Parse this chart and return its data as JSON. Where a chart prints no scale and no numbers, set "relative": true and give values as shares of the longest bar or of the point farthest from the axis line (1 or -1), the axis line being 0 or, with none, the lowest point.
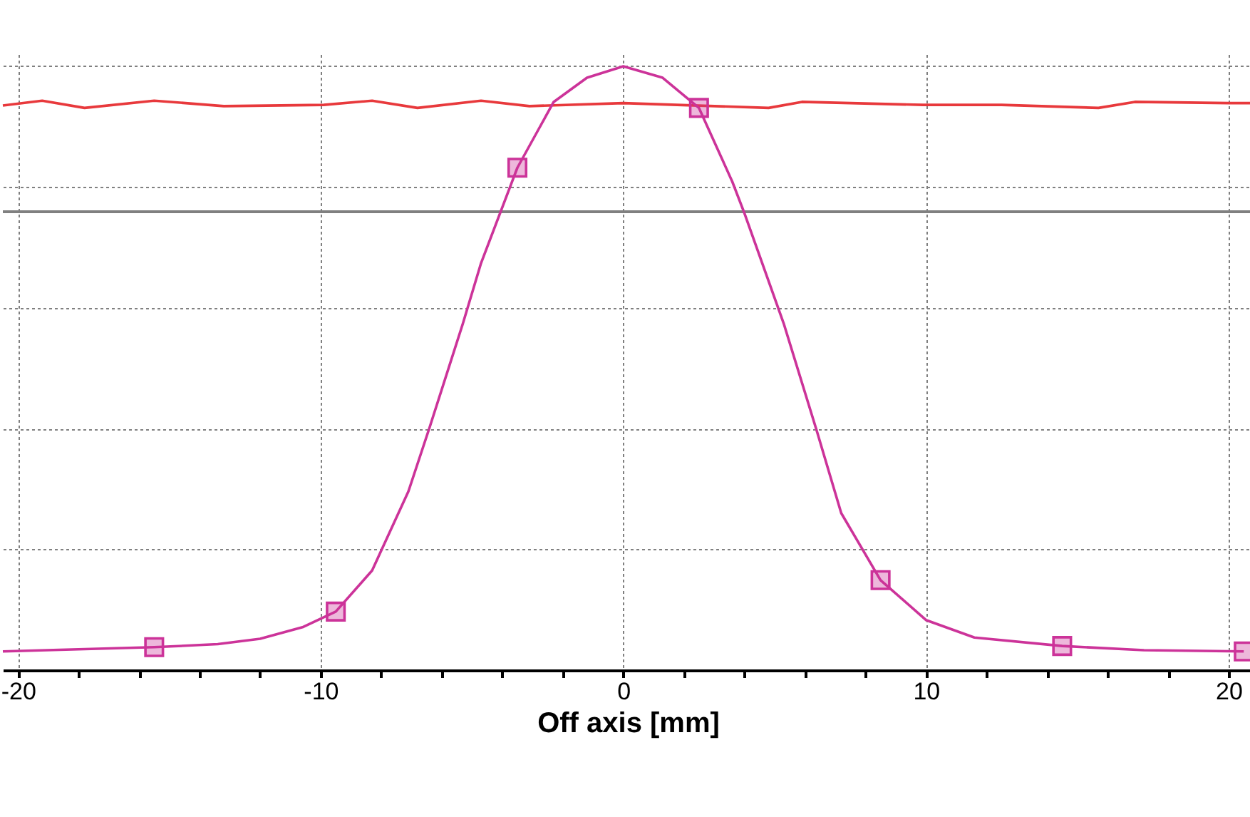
{
  "chart_data": {
    "type": "line",
    "xlabel": "Off axis [mm]",
    "relative": true,
    "grid": true,
    "xlim": [
      -20.5,
      20.8
    ],
    "xticks": [
      -20,
      {
        "value": -18,
        "label": null
      },
      {
        "value": -16,
        "label": null
      },
      {
        "value": -14,
        "label": null
      },
      {
        "value": -12,
        "label": null
      },
      -10,
      {
        "value": -8,
        "label": null
      },
      {
        "value": -6,
        "label": null
      },
      {
        "value": -4,
        "label": null
      },
      {
        "value": -2,
        "label": null
      },
      0,
      {
        "value": 2,
        "label": null
      },
      {
        "value": 4,
        "label": null
      },
      {
        "value": 6,
        "label": null
      },
      {
        "value": 8,
        "label": null
      },
      10,
      {
        "value": 12,
        "label": null
      },
      {
        "value": 14,
        "label": null
      },
      {
        "value": 16,
        "label": null
      },
      {
        "value": 18,
        "label": null
      },
      20
    ],
    "ref_lines": [
      {
        "axis": "y",
        "value": 0.759,
        "color": "#808080"
      }
    ],
    "series": [
      {
        "type": "line",
        "color": "#e8393c",
        "x": [
          -20.5,
          -19.2,
          -17.8,
          -15.5,
          -13.2,
          -9.9,
          -8.3,
          -6.8,
          -4.7,
          -3.1,
          0,
          4.8,
          5.9,
          9.9,
          12.5,
          15.7,
          16.9,
          20,
          20.8
        ],
        "values": [
          0.935,
          0.943,
          0.931,
          0.943,
          0.934,
          0.936,
          0.943,
          0.931,
          0.943,
          0.934,
          0.939,
          0.931,
          0.941,
          0.936,
          0.936,
          0.931,
          0.941,
          0.939,
          0.939
        ]
      },
      {
        "type": "line",
        "color": "#cc3399",
        "x": [
          -20.5,
          -15.5,
          -13.4,
          -12.0,
          -10.6,
          -9.5,
          -8.3,
          -7.1,
          -6.4,
          -5.3,
          -4.7,
          -3.5,
          -2.3,
          -1.2,
          0,
          1.3,
          2.5,
          3.6,
          4.0,
          5.3,
          6.4,
          7.2,
          8.5,
          10.0,
          11.6,
          14.5,
          17.2,
          20.5
        ],
        "values": [
          0.031,
          0.038,
          0.043,
          0.052,
          0.071,
          0.097,
          0.165,
          0.296,
          0.402,
          0.574,
          0.674,
          0.832,
          0.941,
          0.981,
          1.0,
          0.981,
          0.931,
          0.809,
          0.757,
          0.574,
          0.395,
          0.26,
          0.149,
          0.083,
          0.054,
          0.04,
          0.033,
          0.031
        ]
      },
      {
        "type": "scatter",
        "marker": "square",
        "color": "#cc3399",
        "x": [
          -15.5,
          -9.5,
          -3.5,
          2.5,
          8.5,
          14.5,
          20.5
        ],
        "values": [
          0.038,
          0.097,
          0.832,
          0.931,
          0.149,
          0.04,
          0.031
        ]
      }
    ]
  }
}
